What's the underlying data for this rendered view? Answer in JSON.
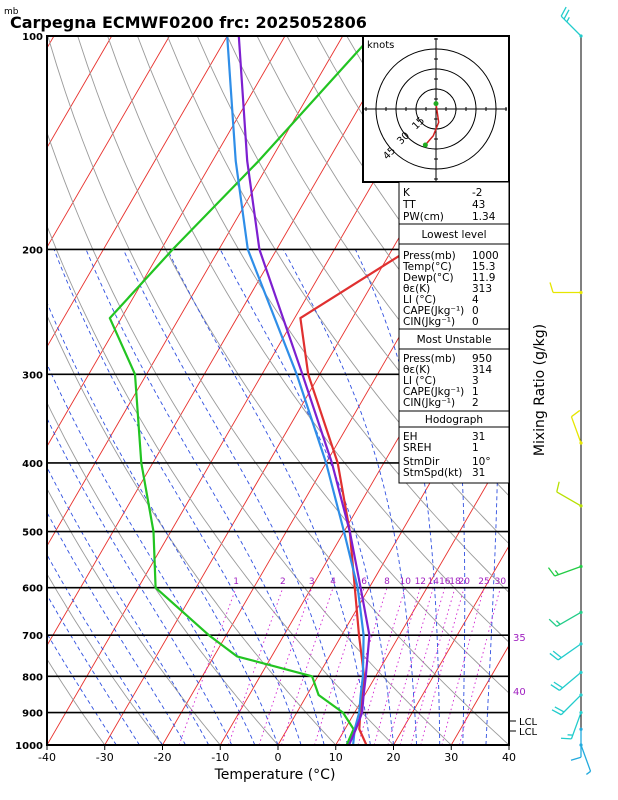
{
  "header": {
    "unit_mb": "mb",
    "title": "Carpegna ECMWF0200 frc: 2025052806"
  },
  "chart_data": {
    "type": "line",
    "xlabel": "Temperature (°C)",
    "ylabel": "Mixing Ratio (g/kg)",
    "x_ticks": [
      -40,
      -30,
      -20,
      -10,
      0,
      10,
      20,
      30,
      40
    ],
    "p_ticks": [
      100,
      200,
      300,
      400,
      500,
      600,
      700,
      800,
      900,
      1000
    ],
    "xlim": [
      -40,
      40
    ],
    "plim": [
      100,
      1000
    ],
    "mixing_ratio_labels": [
      "1",
      "2",
      "3",
      "4",
      "6",
      "8",
      "10",
      "12",
      "14",
      "16",
      "18",
      "20",
      "25",
      "30"
    ],
    "isotherm_edge_labels": [
      "35",
      "40"
    ],
    "lcl_labels": [
      "LCL",
      "LCL"
    ],
    "series": [
      {
        "name": "",
        "color": "#e03030",
        "points": [
          [
            1000,
            15.3
          ],
          [
            950,
            12.5
          ],
          [
            900,
            11
          ],
          [
            850,
            9.5
          ],
          [
            800,
            8
          ],
          [
            700,
            3
          ],
          [
            600,
            -2.5
          ],
          [
            500,
            -9
          ],
          [
            400,
            -18
          ],
          [
            300,
            -32
          ],
          [
            250,
            -39
          ],
          [
            200,
            -27
          ],
          [
            150,
            -17
          ],
          [
            100,
            -4
          ]
        ]
      },
      {
        "name": "",
        "color": "#22c422",
        "points": [
          [
            1000,
            11.9
          ],
          [
            950,
            11.5
          ],
          [
            900,
            8
          ],
          [
            850,
            2
          ],
          [
            800,
            -1
          ],
          [
            750,
            -16
          ],
          [
            700,
            -23
          ],
          [
            600,
            -37
          ],
          [
            500,
            -43
          ],
          [
            400,
            -52
          ],
          [
            300,
            -62
          ],
          [
            250,
            -72
          ],
          [
            200,
            -68
          ],
          [
            150,
            -62
          ],
          [
            100,
            -55
          ]
        ]
      },
      {
        "name": "",
        "color": "#2f8ee8",
        "points": [
          [
            1000,
            13
          ],
          [
            950,
            11.7
          ],
          [
            900,
            10.8
          ],
          [
            850,
            9.3
          ],
          [
            800,
            7.8
          ],
          [
            700,
            3.8
          ],
          [
            600,
            -2
          ],
          [
            500,
            -10
          ],
          [
            400,
            -20
          ],
          [
            300,
            -34
          ],
          [
            200,
            -55
          ],
          [
            150,
            -66
          ],
          [
            100,
            -80
          ]
        ]
      },
      {
        "name": "",
        "color": "#7d1fd0",
        "points": [
          [
            1000,
            12.3
          ],
          [
            950,
            11.9
          ],
          [
            900,
            11.3
          ],
          [
            850,
            9.8
          ],
          [
            800,
            8.3
          ],
          [
            700,
            4.8
          ],
          [
            600,
            -1.5
          ],
          [
            500,
            -9
          ],
          [
            400,
            -19
          ],
          [
            300,
            -33
          ],
          [
            200,
            -53
          ],
          [
            150,
            -64
          ],
          [
            100,
            -78
          ]
        ]
      }
    ],
    "hodograph": {
      "units_label": "knots",
      "ring_labels": [
        "15",
        "30",
        "45"
      ],
      "trace": [
        [
          0,
          4
        ],
        [
          2,
          -10
        ],
        [
          -2,
          -20
        ],
        [
          -8,
          -27
        ]
      ]
    },
    "indices": {
      "k": {
        "label": "K",
        "value": "-2"
      },
      "tt": {
        "label": "TT",
        "value": "43"
      },
      "pw": {
        "label": "PW(cm)",
        "value": "1.34"
      }
    },
    "lowest_level": {
      "header": "Lowest level",
      "rows": [
        {
          "label": "Press(mb)",
          "value": "1000"
        },
        {
          "label": "Temp(°C)",
          "value": "15.3"
        },
        {
          "label": "Dewp(°C)",
          "value": "11.9"
        },
        {
          "label": "θε(K)",
          "value": "313"
        },
        {
          "label": "LI (°C)",
          "value": "4"
        },
        {
          "label": "CAPE(Jkg⁻¹)",
          "value": "0"
        },
        {
          "label": "CIN(Jkg⁻¹)",
          "value": "0"
        }
      ]
    },
    "most_unstable": {
      "header": "Most Unstable",
      "rows": [
        {
          "label": "Press(mb)",
          "value": "950"
        },
        {
          "label": "θε(K)",
          "value": "314"
        },
        {
          "label": "LI (°C)",
          "value": "3"
        },
        {
          "label": "CAPE(Jkg⁻¹)",
          "value": "1"
        },
        {
          "label": "CIN(Jkg⁻¹)",
          "value": "2"
        }
      ]
    },
    "hodograph_table": {
      "header": "Hodograph",
      "rows": [
        {
          "label": "EH",
          "value": "31"
        },
        {
          "label": "SREH",
          "value": "1"
        },
        {
          "label": "StmDir",
          "value": "10°"
        },
        {
          "label": "StmSpd(kt)",
          "value": "31"
        }
      ]
    },
    "colors": {
      "isotherm": "#e8302c",
      "dry_adiabat": "#9a9a9a",
      "moist_adiabat": "#3050e0",
      "mixing_ratio": "#d020d0",
      "purple_label": "#a020c0",
      "wind_line": "#11aacc",
      "wind_barb_cyan": "#22cccc",
      "wind_barb_green": "#22cc44",
      "wind_barb_yellow": "#e6e600"
    },
    "wind_barbs": [
      {
        "p": 100,
        "dir": 315,
        "speed": 25,
        "color": "#22cccc"
      },
      {
        "p": 230,
        "dir": 270,
        "speed": 10,
        "color": "#e6e600"
      },
      {
        "p": 375,
        "dir": 340,
        "speed": 10,
        "color": "#e6e600"
      },
      {
        "p": 460,
        "dir": 300,
        "speed": 10,
        "color": "#b8e000"
      },
      {
        "p": 560,
        "dir": 250,
        "speed": 15,
        "color": "#22cc44"
      },
      {
        "p": 650,
        "dir": 240,
        "speed": 15,
        "color": "#22cc88"
      },
      {
        "p": 720,
        "dir": 235,
        "speed": 20,
        "color": "#22cccc"
      },
      {
        "p": 790,
        "dir": 230,
        "speed": 20,
        "color": "#22cccc"
      },
      {
        "p": 850,
        "dir": 225,
        "speed": 20,
        "color": "#22cccc"
      },
      {
        "p": 900,
        "dir": 200,
        "speed": 15,
        "color": "#22cccc"
      },
      {
        "p": 950,
        "dir": 180,
        "speed": 10,
        "color": "#22aadd"
      },
      {
        "p": 1000,
        "dir": 160,
        "speed": 5,
        "color": "#22aadd"
      }
    ]
  }
}
